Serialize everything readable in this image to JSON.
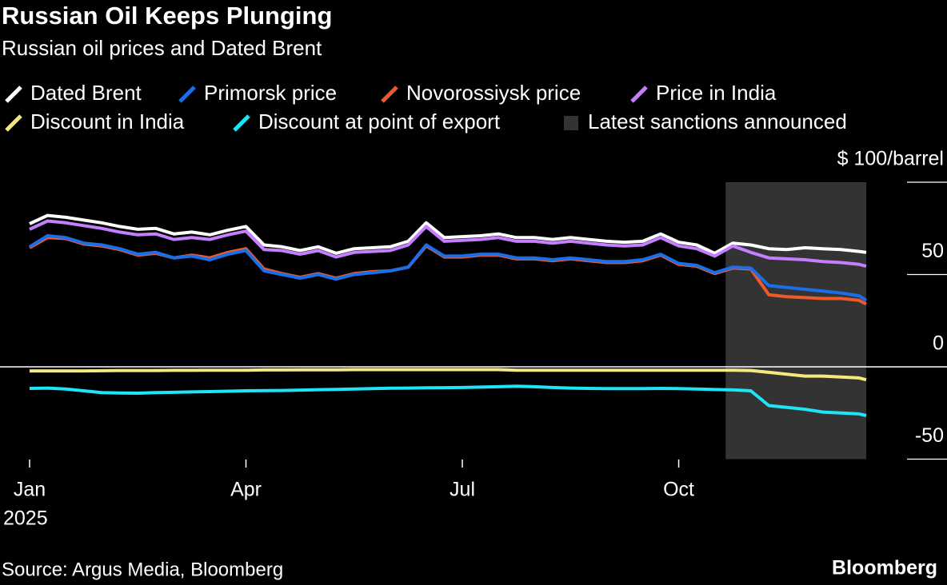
{
  "chart_data": {
    "type": "line",
    "title": "Russian Oil Keeps Plunging",
    "subtitle": "Russian oil prices and Dated Brent",
    "source": "Source: Argus Media, Bloomberg",
    "brand": "Bloomberg",
    "x": [
      0,
      0.25,
      0.5,
      0.75,
      1,
      1.25,
      1.5,
      1.75,
      2,
      2.25,
      2.5,
      2.75,
      3,
      3.25,
      3.5,
      3.75,
      4,
      4.25,
      4.5,
      4.75,
      5,
      5.25,
      5.5,
      5.75,
      6,
      6.25,
      6.5,
      6.75,
      7,
      7.25,
      7.5,
      7.75,
      8,
      8.25,
      8.5,
      8.75,
      9,
      9.25,
      9.5,
      9.75,
      10,
      10.25,
      10.5,
      10.75,
      11,
      11.25,
      11.5,
      11.6
    ],
    "xlim": [
      0,
      11.6
    ],
    "xticks": [
      {
        "value": 0,
        "label": "Jan"
      },
      {
        "value": 3,
        "label": "Apr"
      },
      {
        "value": 6,
        "label": "Jul"
      },
      {
        "value": 9,
        "label": "Oct"
      }
    ],
    "x_year_label": "2025",
    "ylim": [
      -50,
      100
    ],
    "yticks": [
      {
        "value": 100,
        "label": "$ 100/barrel"
      },
      50,
      0,
      -50
    ],
    "series": [
      {
        "name": "Dated Brent",
        "color": "#ffffff",
        "values": [
          77.5,
          82,
          81,
          79.5,
          78,
          76,
          74.5,
          75,
          72,
          73,
          71.5,
          74,
          76,
          66,
          65,
          63,
          65,
          61.5,
          64,
          64.5,
          65,
          68,
          78,
          70,
          70.5,
          71,
          72,
          70,
          70,
          69,
          70,
          69,
          68,
          67.5,
          68,
          72,
          67.5,
          66,
          61.5,
          67,
          66,
          64,
          63.5,
          64.5,
          64,
          63.5,
          62.5,
          62
        ]
      },
      {
        "name": "Primorsk price",
        "color": "#1a6fe8",
        "values": [
          65,
          71,
          70,
          67,
          66,
          64,
          61,
          62,
          59,
          60,
          58,
          61,
          63,
          52,
          50,
          48,
          50,
          47.5,
          50,
          51,
          52,
          54,
          66,
          60,
          60,
          61,
          61,
          59,
          59,
          58,
          59,
          58,
          57,
          57,
          58,
          61,
          56,
          55,
          51,
          54,
          53.5,
          44,
          43,
          42,
          41,
          40,
          38.5,
          36
        ]
      },
      {
        "name": "Novorossiysk price",
        "color": "#f0592c",
        "values": [
          64.5,
          70,
          69.5,
          66.5,
          65.5,
          63.5,
          60.5,
          61.5,
          59,
          60.5,
          59,
          62,
          64,
          53,
          50.5,
          48.5,
          50.5,
          48,
          50.5,
          51.5,
          52,
          54,
          65.5,
          59.5,
          59.5,
          60.5,
          60.5,
          58.5,
          58.5,
          57.5,
          58.5,
          57.5,
          56.5,
          56.5,
          57.5,
          60.5,
          55.5,
          54.5,
          50.5,
          53.5,
          53,
          39,
          38,
          37.5,
          37,
          37,
          36,
          34
        ]
      },
      {
        "name": "Price in India",
        "color": "#c77dff",
        "values": [
          74.5,
          79,
          78,
          76.5,
          75,
          73,
          71.5,
          72,
          69,
          70,
          69,
          71.5,
          73.5,
          63.5,
          63,
          61,
          63,
          59.5,
          62,
          62.5,
          63,
          66,
          76,
          68,
          68.5,
          69,
          70,
          68,
          68,
          67,
          68,
          67,
          66,
          65.5,
          66,
          70,
          65.5,
          64,
          60,
          65.5,
          62,
          59,
          58.5,
          58,
          57,
          56.5,
          55.5,
          54.5
        ]
      },
      {
        "name": "Discount in India",
        "color": "#f5e97c",
        "values": [
          -2.2,
          -2.2,
          -2.2,
          -2.2,
          -2.1,
          -2,
          -2,
          -2,
          -1.9,
          -1.9,
          -1.8,
          -1.8,
          -1.8,
          -1.7,
          -1.7,
          -1.6,
          -1.6,
          -1.6,
          -1.5,
          -1.5,
          -1.5,
          -1.5,
          -1.5,
          -1.5,
          -1.5,
          -1.5,
          -1.5,
          -1.8,
          -1.8,
          -1.8,
          -1.8,
          -1.8,
          -1.8,
          -1.8,
          -1.8,
          -1.8,
          -1.8,
          -1.8,
          -1.8,
          -1.8,
          -2,
          -3,
          -4,
          -5,
          -5,
          -5.5,
          -6,
          -7
        ]
      },
      {
        "name": "Discount at point of export",
        "color": "#1ee4f5",
        "values": [
          -11.7,
          -11.5,
          -12,
          -13,
          -14,
          -14.2,
          -14.3,
          -14,
          -13.8,
          -13.6,
          -13.4,
          -13.2,
          -13,
          -12.9,
          -12.8,
          -12.6,
          -12.4,
          -12.2,
          -12,
          -11.8,
          -11.6,
          -11.5,
          -11.4,
          -11.3,
          -11.2,
          -11,
          -10.8,
          -10.5,
          -10.8,
          -11.2,
          -11.5,
          -11.7,
          -11.8,
          -11.8,
          -11.8,
          -11.7,
          -11.8,
          -12,
          -12.3,
          -12.5,
          -13,
          -21,
          -22,
          -23,
          -24.5,
          -25,
          -25.5,
          -26.4
        ]
      }
    ],
    "shade": {
      "name": "Latest sanctions announced",
      "color": "#333333",
      "x": [
        9.65,
        11.6
      ]
    }
  }
}
